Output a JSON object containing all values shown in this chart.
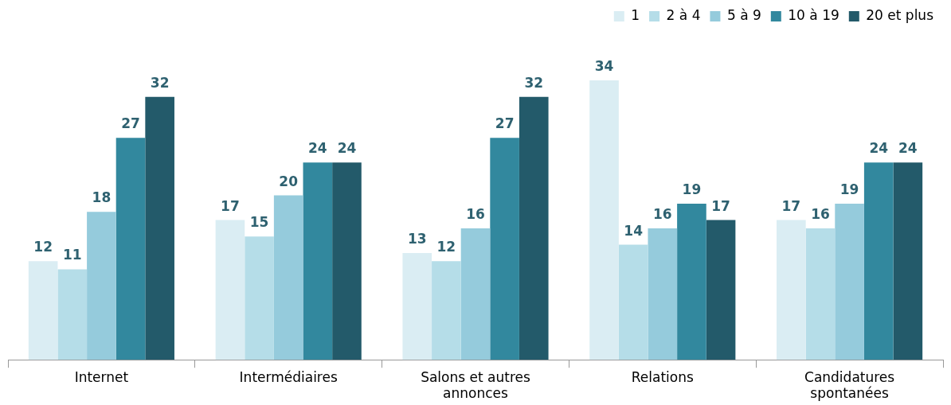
{
  "chart_data": {
    "type": "bar",
    "categories": [
      "Internet",
      "Intermédiaires",
      "Salons et autres annonces",
      "Relations",
      "Candidatures spontanées"
    ],
    "series": [
      {
        "name": "1",
        "color": "#daedf3",
        "values": [
          12,
          17,
          13,
          34,
          17
        ]
      },
      {
        "name": "2 à 4",
        "color": "#b5dde8",
        "values": [
          11,
          15,
          12,
          14,
          16
        ]
      },
      {
        "name": "5 à 9",
        "color": "#95cbdc",
        "values": [
          18,
          20,
          16,
          16,
          19
        ]
      },
      {
        "name": "10 à 19",
        "color": "#32889e",
        "values": [
          27,
          24,
          27,
          19,
          24
        ]
      },
      {
        "name": "20 et plus",
        "color": "#235a6a",
        "values": [
          32,
          24,
          32,
          17,
          24
        ]
      }
    ],
    "data_labels": true,
    "legend": "top right",
    "grid": false
  }
}
